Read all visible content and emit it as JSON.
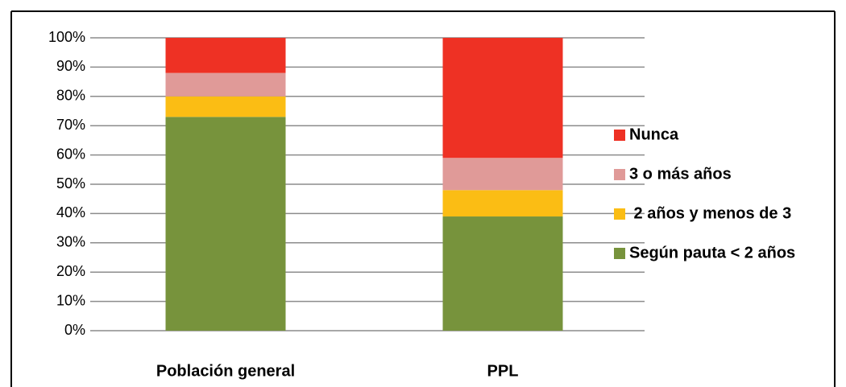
{
  "chart_data": {
    "type": "stacked_bar",
    "categories": [
      "Población general",
      "PPL"
    ],
    "series": [
      {
        "name": "Según pauta < 2 años",
        "color": "#77933c",
        "values": [
          73,
          39
        ]
      },
      {
        "name": " 2 años y menos de 3",
        "color": "#fbbd14",
        "values": [
          7,
          9
        ]
      },
      {
        "name": "3 o más años",
        "color": "#e09a98",
        "values": [
          8,
          11
        ]
      },
      {
        "name": "Nunca",
        "color": "#ee3124",
        "values": [
          12,
          41
        ]
      }
    ],
    "ylim": [
      0,
      100
    ],
    "yticks": [
      {
        "value": 0,
        "label": "0%"
      },
      {
        "value": 10,
        "label": "10%"
      },
      {
        "value": 20,
        "label": "20%"
      },
      {
        "value": 30,
        "label": "30%"
      },
      {
        "value": 40,
        "label": "40%"
      },
      {
        "value": 50,
        "label": "50%"
      },
      {
        "value": 60,
        "label": "60%"
      },
      {
        "value": 70,
        "label": "70%"
      },
      {
        "value": 80,
        "label": "80%"
      },
      {
        "value": 90,
        "label": "90%"
      },
      {
        "value": 100,
        "label": "100%"
      }
    ],
    "grid": true,
    "legend": "right"
  }
}
